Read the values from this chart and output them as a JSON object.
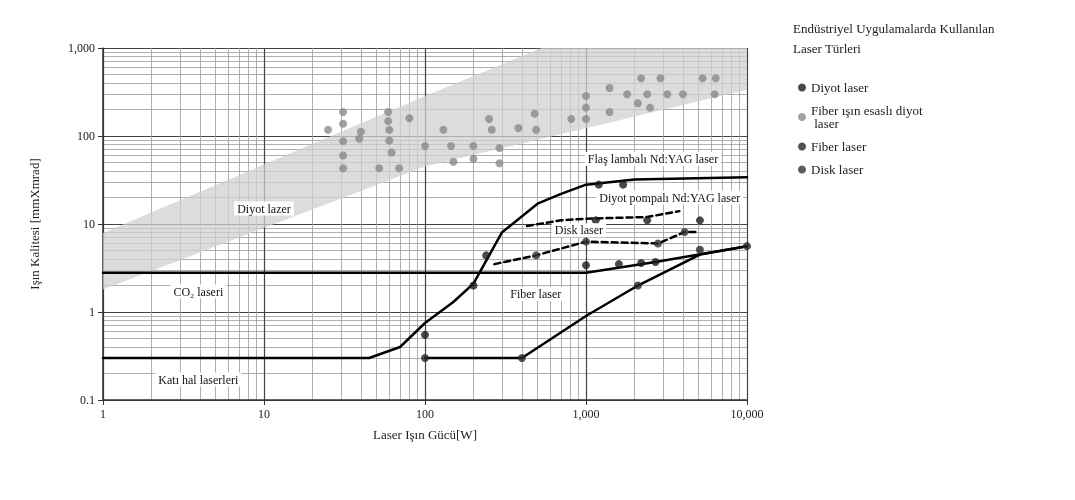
{
  "chart_data": {
    "type": "scatter",
    "xlabel": "Laser Işın Gücü[W]",
    "ylabel": "Işın Kalitesi [mmXmrad]",
    "legend_title": "Endüstriyel Uygulamalarda Kullanılan Laser Türleri",
    "legend": "right",
    "log": "xy",
    "grid": true,
    "xlim": [
      1,
      10000
    ],
    "xticks": [
      1,
      10,
      100,
      {
        "value": 1000,
        "label": "1,000"
      },
      {
        "value": 10000,
        "label": "10,000"
      }
    ],
    "ylim": [
      0.1,
      1000
    ],
    "yticks": [
      0.1,
      1,
      10,
      100,
      {
        "value": 1000,
        "label": "1,000"
      }
    ],
    "series": [
      {
        "type": "area",
        "color": "#d0d0d0",
        "x": [
          1,
          100,
          530,
          10000
        ],
        "values": [
          null,
          null,
          null,
          null
        ],
        "lower": [
          1.8,
          45,
          93,
          335
        ],
        "upper": [
          7.9,
          285,
          1000,
          1000
        ]
      },
      {
        "type": "line",
        "color": "#000000",
        "line_style": "solid",
        "marker": "none",
        "x": [
          1,
          45,
          70,
          100,
          150,
          200,
          300,
          500,
          700,
          1000,
          2000,
          10000
        ],
        "values": [
          0.3,
          0.3,
          0.4,
          0.75,
          1.3,
          2.1,
          8,
          17,
          22,
          28,
          32,
          34
        ]
      },
      {
        "type": "line",
        "color": "#000000",
        "line_style": "solid",
        "marker": "none",
        "x": [
          1,
          1000,
          2700,
          10000
        ],
        "values": [
          2.8,
          2.8,
          3.7,
          5.6
        ]
      },
      {
        "type": "line",
        "color": "#000000",
        "line_style": "solid",
        "marker": "none",
        "x": [
          100,
          400,
          1000,
          2100,
          5100,
          10000
        ],
        "values": [
          0.3,
          0.3,
          0.9,
          2.0,
          4.5,
          5.6
        ]
      },
      {
        "type": "line",
        "color": "#000000",
        "line_style": "dashed",
        "marker": "none",
        "x": [
          270,
          490,
          1000,
          2800,
          4100,
          5000
        ],
        "values": [
          3.5,
          4.4,
          6.3,
          6.0,
          8.1,
          8.1
        ]
      },
      {
        "type": "line",
        "color": "#000000",
        "line_style": "dashed",
        "marker": "none",
        "x": [
          430,
          700,
          1000,
          2400,
          3800
        ],
        "values": [
          9.5,
          11,
          11.5,
          12,
          14
        ]
      },
      {
        "name": "Diyot laser",
        "color": "#1a1a1a",
        "marker": "circle",
        "x": [
          100,
          200,
          240,
          1000,
          1600,
          2200,
          2700,
          1200,
          1700,
          1150,
          2400,
          5100
        ],
        "values": [
          0.55,
          2.0,
          4.4,
          3.4,
          3.5,
          3.6,
          3.7,
          28,
          28,
          11,
          11,
          11
        ]
      },
      {
        "name": "Fiber ışın esaslı diyot laser",
        "color": "#8a8a8a",
        "marker": "circle",
        "x": [
          25,
          31,
          31,
          31,
          31,
          31,
          40,
          39,
          59,
          59,
          60,
          60,
          62,
          80,
          52,
          69,
          130,
          100,
          145,
          150,
          200,
          200,
          250,
          260,
          290,
          290,
          380,
          480,
          490,
          810,
          1000,
          1000,
          1000,
          1400,
          1800,
          2100,
          2400,
          2500,
          3200,
          4000,
          5300,
          6400,
          6300,
          2200,
          2900,
          1400
        ],
        "values": [
          118,
          187,
          138,
          87,
          60,
          43,
          112,
          93,
          187,
          148,
          118,
          89,
          65,
          159,
          43,
          43,
          118,
          77,
          77,
          51,
          77,
          55,
          156,
          118,
          73,
          49,
          123,
          179,
          118,
          156,
          285,
          156,
          210,
          351,
          298,
          236,
          298,
          210,
          298,
          298,
          454,
          454,
          298,
          454,
          454,
          187
        ]
      },
      {
        "name": "Fiber laser",
        "color": "#262626",
        "marker": "circle",
        "x": [
          100,
          400,
          2100,
          5100,
          10000
        ],
        "values": [
          0.3,
          0.3,
          2.0,
          5.1,
          5.6
        ]
      },
      {
        "name": "Disk laser",
        "color": "#333333",
        "marker": "circle",
        "x": [
          490,
          1000,
          2800,
          4100
        ],
        "values": [
          4.4,
          6.3,
          6.0,
          8.1
        ]
      }
    ],
    "annotations": [
      "Diyot lazer",
      "CO₂ laseri",
      "Katı hal laserleri",
      "Fiber laser",
      "Disk laser",
      "Diyot pompalı Nd:YAG laser",
      "Flaş lambalı Nd:YAG laser"
    ]
  }
}
